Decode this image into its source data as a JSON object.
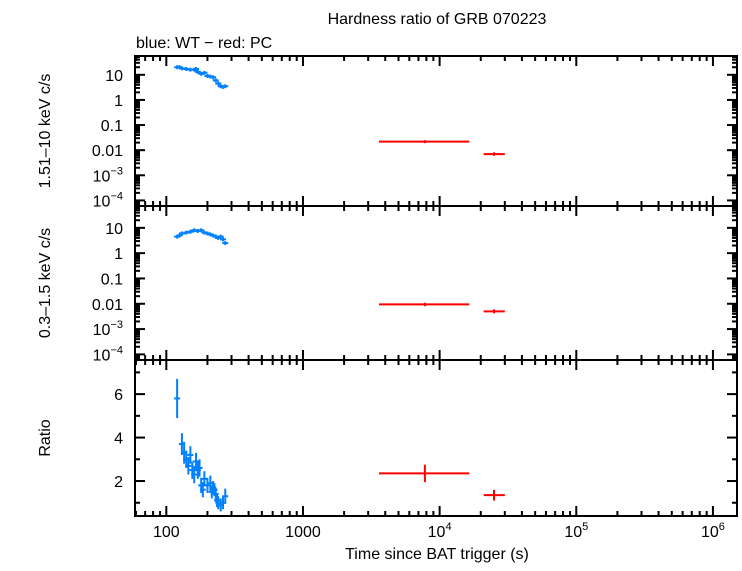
{
  "chart_data": {
    "type": "scatter",
    "title": "Hardness ratio of GRB 070223",
    "subtitle": "blue: WT − red: PC",
    "xlabel": "Time since BAT trigger (s)",
    "xscale": "log",
    "xlim": [
      59,
      1500000
    ],
    "xticks": [
      "100",
      "1000",
      "10^4",
      "10^5",
      "10^6"
    ],
    "colors": {
      "WT": "#0080ff",
      "PC": "#ff0000"
    },
    "panels": [
      {
        "ylabel": "1.51–10 keV c/s",
        "yscale": "log",
        "ylim": [
          6e-05,
          56
        ],
        "yticks": [
          "10",
          "1",
          "0.1",
          "0.01",
          "10^-3",
          "10^-4"
        ],
        "WT": {
          "x": [
            120,
            125,
            130,
            140,
            150,
            160,
            165,
            170,
            180,
            190,
            200,
            210,
            220,
            230,
            240,
            250,
            260,
            270
          ],
          "y": [
            20,
            20,
            18,
            17,
            16,
            16,
            17,
            13,
            11,
            12,
            9,
            8.5,
            8,
            6,
            4.5,
            3.5,
            3.3,
            3.5
          ]
        },
        "PC": [
          {
            "x": 7800,
            "xerr": [
              3600,
              16500
            ],
            "y": 0.022,
            "yerr": [
              0.019,
              0.025
            ]
          },
          {
            "x": 25000,
            "xerr": [
              21000,
              30000
            ],
            "y": 0.007,
            "yerr": [
              0.006,
              0.0082
            ]
          }
        ]
      },
      {
        "ylabel": "0.3–1.5 keV c/s",
        "yscale": "log",
        "ylim": [
          6e-05,
          73
        ],
        "yticks": [
          "10",
          "1",
          "0.1",
          "0.01",
          "10^-3",
          "10^-4"
        ],
        "WT": {
          "x": [
            120,
            125,
            130,
            140,
            150,
            160,
            170,
            180,
            190,
            200,
            210,
            220,
            230,
            240,
            250,
            260,
            270
          ],
          "y": [
            4.5,
            5,
            6,
            6.5,
            7,
            8,
            7.5,
            8,
            6.5,
            6,
            5.5,
            5,
            4.5,
            4,
            4.5,
            3.5,
            2.5
          ]
        },
        "PC": [
          {
            "x": 7800,
            "xerr": [
              3600,
              16500
            ],
            "y": 0.0095,
            "yerr": [
              0.008,
              0.011
            ]
          },
          {
            "x": 25000,
            "xerr": [
              21000,
              30000
            ],
            "y": 0.005,
            "yerr": [
              0.0042,
              0.006
            ]
          }
        ]
      },
      {
        "ylabel": "Ratio",
        "yscale": "linear",
        "ylim": [
          0.39,
          7.57
        ],
        "yticks": [
          "2",
          "4",
          "6"
        ],
        "WT": {
          "x": [
            120,
            130,
            135,
            140,
            145,
            150,
            155,
            160,
            165,
            170,
            175,
            180,
            185,
            190,
            200,
            210,
            215,
            220,
            225,
            230,
            235,
            240,
            250,
            260,
            270
          ],
          "y": [
            5.8,
            3.7,
            3.3,
            3.0,
            2.7,
            3.2,
            2.5,
            2.3,
            2.9,
            2.5,
            2.6,
            1.8,
            1.6,
            2.1,
            1.8,
            1.9,
            1.5,
            1.7,
            1.6,
            1.4,
            1.1,
            1.0,
            0.9,
            1.0,
            1.3
          ],
          "yerr": [
            0.9,
            0.5,
            0.5,
            0.4,
            0.4,
            0.4,
            0.4,
            0.4,
            0.4,
            0.4,
            0.4,
            0.35,
            0.35,
            0.35,
            0.35,
            0.35,
            0.3,
            0.3,
            0.3,
            0.3,
            0.3,
            0.3,
            0.3,
            0.3,
            0.35
          ]
        },
        "PC": [
          {
            "x": 7800,
            "xerr": [
              3600,
              16500
            ],
            "y": 2.35,
            "yerr": [
              1.95,
              2.75
            ]
          },
          {
            "x": 25000,
            "xerr": [
              21000,
              30000
            ],
            "y": 1.35,
            "yerr": [
              1.1,
              1.6
            ]
          }
        ]
      }
    ]
  }
}
